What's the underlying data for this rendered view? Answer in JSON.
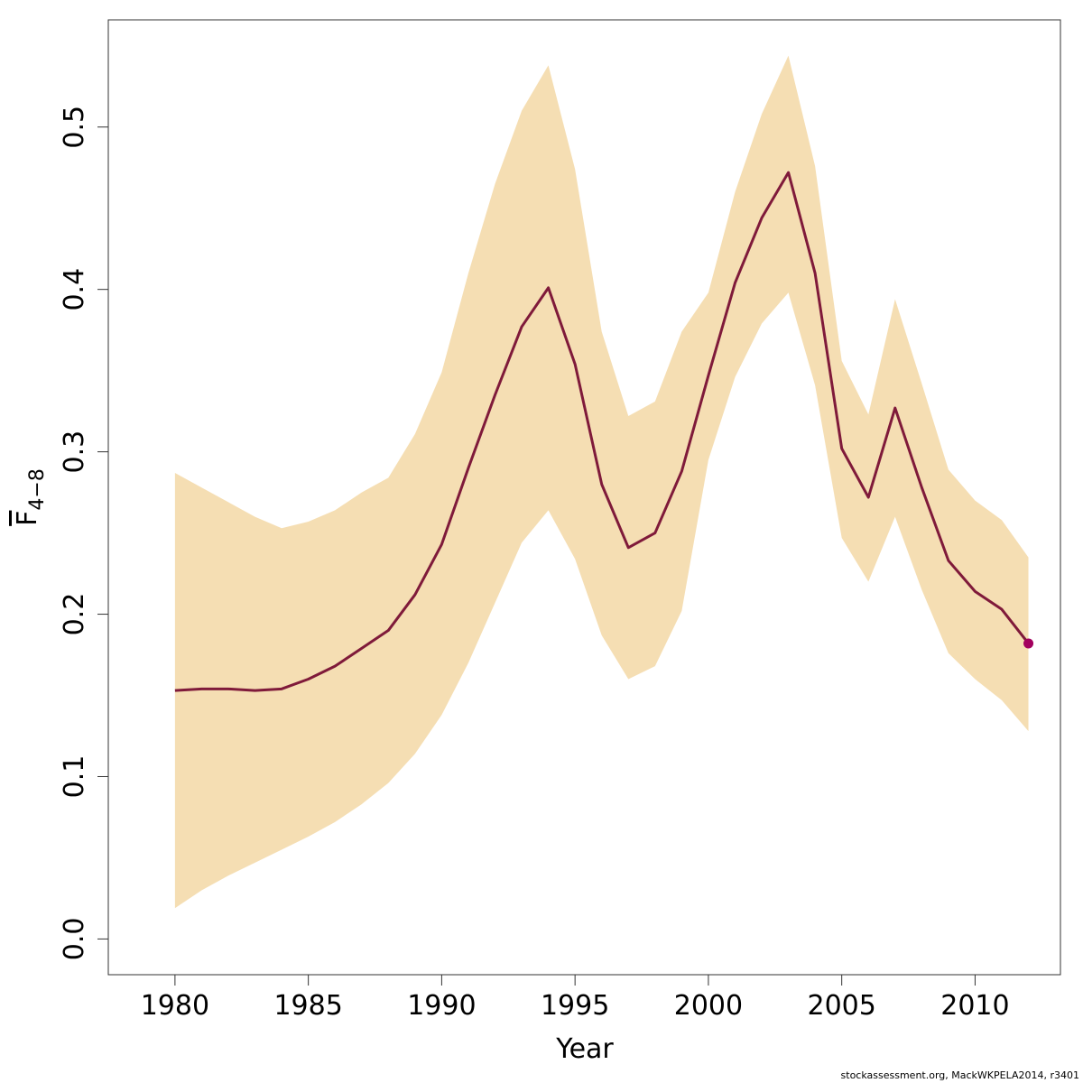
{
  "chart_data": {
    "type": "line",
    "xlabel": "Year",
    "ylabel": {
      "main": "F",
      "subscript": "4−8"
    },
    "xlim": [
      1977.5,
      2013.2
    ],
    "ylim": [
      -0.022,
      0.566
    ],
    "xticks": [
      "1980",
      "1985",
      "1990",
      "1995",
      "2000",
      "2005",
      "2010"
    ],
    "yticks": [
      "0.0",
      "0.1",
      "0.2",
      "0.3",
      "0.4",
      "0.5"
    ],
    "grid": false,
    "legend": "none",
    "colors": {
      "band": "#f5deb3",
      "line": "#7f1a3a",
      "last_point": "#a3005e",
      "frame": "#333333"
    },
    "x": [
      1980,
      1981,
      1982,
      1983,
      1984,
      1985,
      1986,
      1987,
      1988,
      1989,
      1990,
      1991,
      1992,
      1993,
      1994,
      1995,
      1996,
      1997,
      1998,
      1999,
      2000,
      2001,
      2002,
      2003,
      2004,
      2005,
      2006,
      2007,
      2008,
      2009,
      2010,
      2011,
      2012
    ],
    "series": [
      {
        "values": [
          0.153,
          0.154,
          0.154,
          0.153,
          0.154,
          0.16,
          0.168,
          0.179,
          0.19,
          0.212,
          0.243,
          0.29,
          0.335,
          0.377,
          0.401,
          0.354,
          0.28,
          0.241,
          0.25,
          0.288,
          0.347,
          0.404,
          0.444,
          0.472,
          0.41,
          0.302,
          0.272,
          0.327,
          0.278,
          0.233,
          0.214,
          0.203,
          0.182
        ]
      },
      {
        "values": [
          0.287,
          0.278,
          0.269,
          0.26,
          0.253,
          0.257,
          0.264,
          0.275,
          0.284,
          0.311,
          0.349,
          0.41,
          0.465,
          0.51,
          0.538,
          0.474,
          0.374,
          0.322,
          0.331,
          0.374,
          0.398,
          0.46,
          0.508,
          0.544,
          0.476,
          0.356,
          0.323,
          0.394,
          0.342,
          0.289,
          0.27,
          0.258,
          0.235
        ]
      },
      {
        "values": [
          0.019,
          0.03,
          0.039,
          0.047,
          0.055,
          0.063,
          0.072,
          0.083,
          0.096,
          0.114,
          0.138,
          0.17,
          0.207,
          0.244,
          0.264,
          0.234,
          0.187,
          0.16,
          0.168,
          0.202,
          0.295,
          0.346,
          0.379,
          0.398,
          0.341,
          0.247,
          0.22,
          0.26,
          0.215,
          0.176,
          0.16,
          0.147,
          0.128
        ]
      }
    ]
  },
  "footer": "stockassessment.org, MackWKPELA2014, r3401"
}
